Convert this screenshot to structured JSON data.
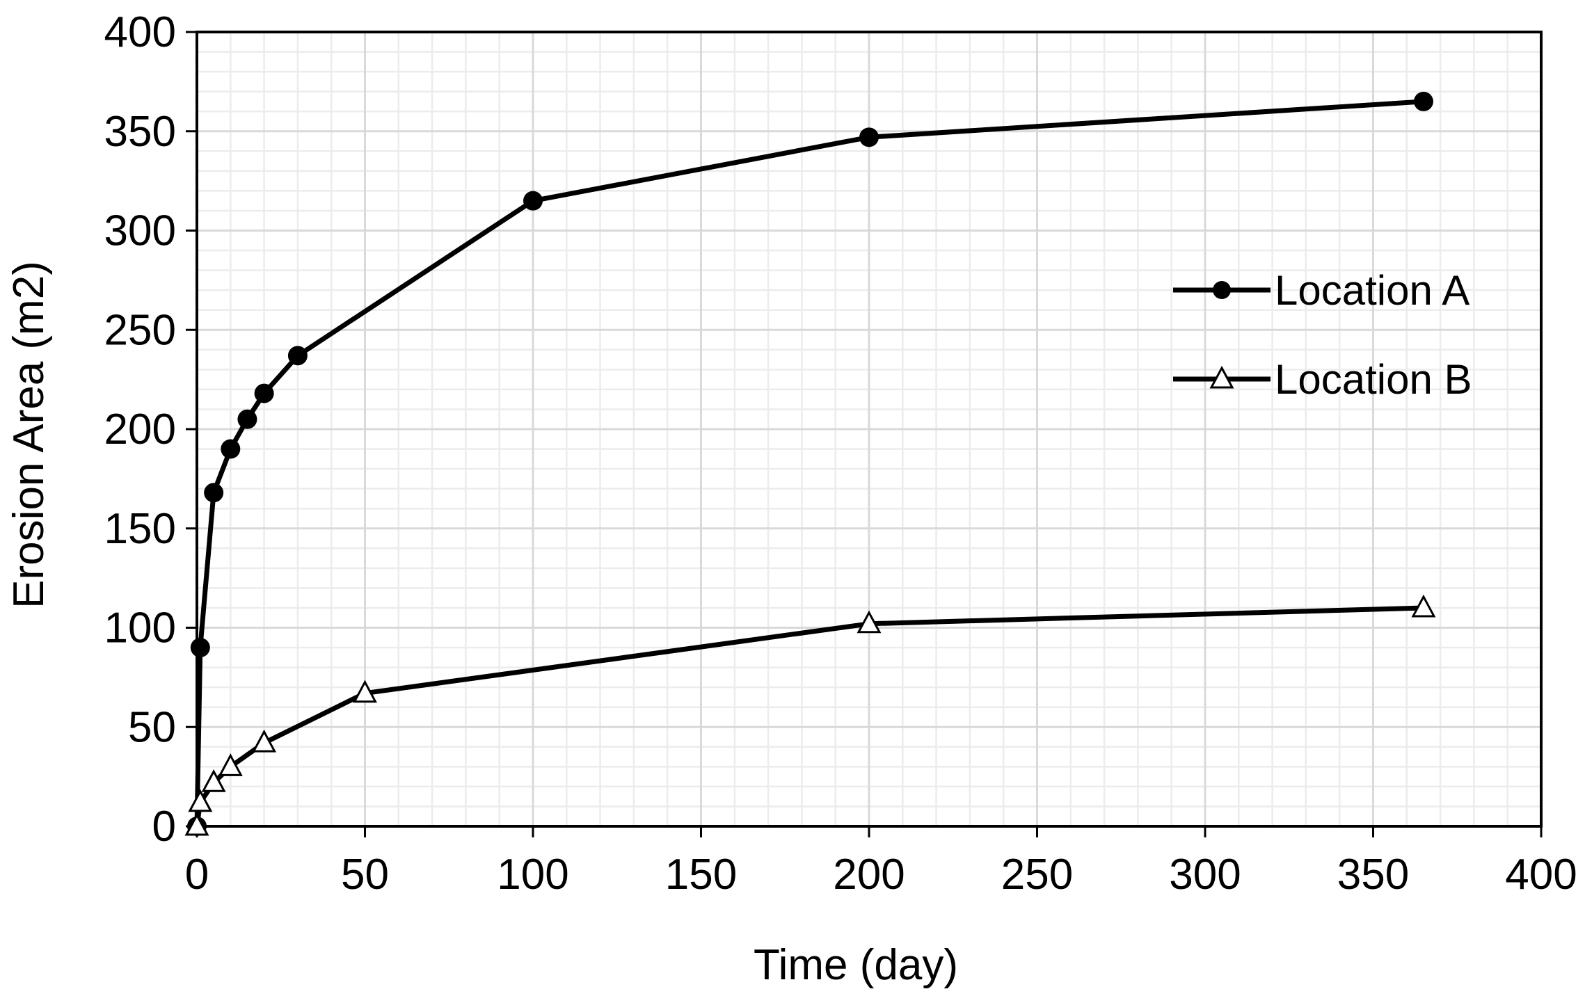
{
  "chart_data": {
    "type": "line",
    "title": "",
    "xlabel": "Time (day)",
    "ylabel": "Erosion Area (m2)",
    "xlim": [
      0,
      400
    ],
    "ylim": [
      0,
      400
    ],
    "xticks": [
      0,
      50,
      100,
      150,
      200,
      250,
      300,
      350,
      400
    ],
    "yticks": [
      0,
      50,
      100,
      150,
      200,
      250,
      300,
      350,
      400
    ],
    "xtick_labels": [
      "0",
      "50",
      "100",
      "150",
      "200",
      "250",
      "300",
      "350",
      "400"
    ],
    "ytick_labels": [
      "0",
      "50",
      "100",
      "150",
      "200",
      "250",
      "300",
      "350",
      "400"
    ],
    "grid": true,
    "legend_position": "right",
    "series": [
      {
        "name": "Location A",
        "marker": "circle",
        "x": [
          0,
          1,
          5,
          10,
          15,
          20,
          30,
          100,
          200,
          365
        ],
        "y": [
          0,
          90,
          168,
          190,
          205,
          218,
          237,
          315,
          347,
          365
        ]
      },
      {
        "name": "Location B",
        "marker": "triangle",
        "x": [
          0,
          1,
          5,
          10,
          20,
          50,
          200,
          365
        ],
        "y": [
          0,
          12,
          22,
          30,
          42,
          67,
          102,
          110
        ]
      }
    ]
  },
  "colors": {
    "line": "#000000",
    "grid_major": "#d9d9d9",
    "grid_minor": "#ececec",
    "frame": "#000000"
  }
}
